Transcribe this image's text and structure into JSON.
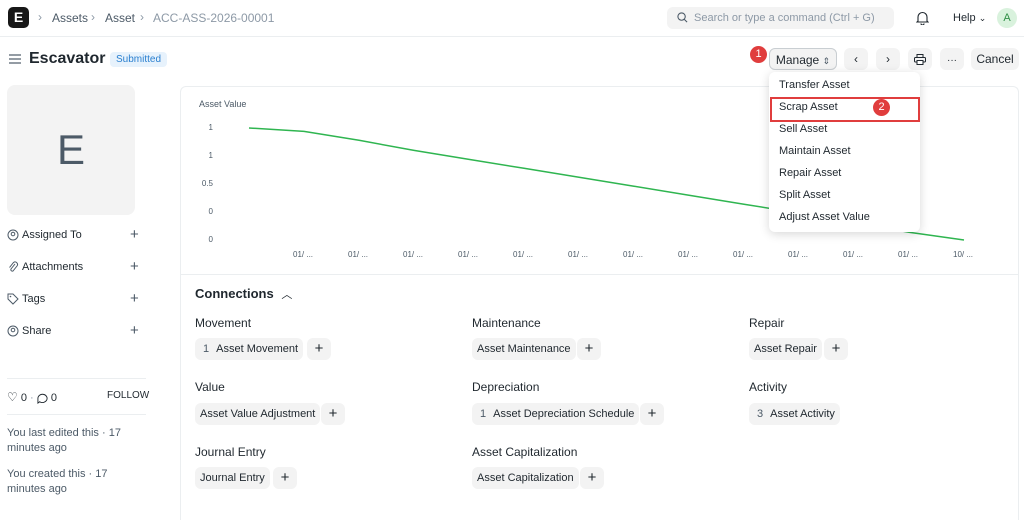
{
  "navbar": {
    "logo": "E",
    "breadcrumbs": [
      "Assets",
      "Asset",
      "ACC-ASS-2026-00001"
    ],
    "search_placeholder": "Search or type a command (Ctrl + G)",
    "help_label": "Help",
    "avatar_initial": "A"
  },
  "header": {
    "title": "Escavator",
    "status": "Submitted",
    "manage_label": "Manage",
    "cancel_label": "Cancel",
    "more_label": "···"
  },
  "steps": [
    "1",
    "2"
  ],
  "sidebar": {
    "image_letter": "E",
    "items": [
      {
        "label": "Assigned To",
        "icon": "assign-icon"
      },
      {
        "label": "Attachments",
        "icon": "paperclip-icon"
      },
      {
        "label": "Tags",
        "icon": "tag-icon"
      },
      {
        "label": "Share",
        "icon": "share-icon"
      }
    ],
    "likes": "0",
    "comments": "0",
    "follow_label": "FOLLOW",
    "last_edited": "You last edited this · 17 minutes ago",
    "created": "You created this · 17 minutes ago"
  },
  "chart_data": {
    "type": "line",
    "title": "Asset Value",
    "y_ticks": [
      "1",
      "1",
      "0.5",
      "0",
      "0"
    ],
    "x_ticks": [
      "01/ ...",
      "01/ ...",
      "01/ ...",
      "01/ ...",
      "01/ ...",
      "01/ ...",
      "01/ ...",
      "01/ ...",
      "01/ ...",
      "01/ ...",
      "01/ ...",
      "01/ ...",
      "10/ ..."
    ],
    "color": "#2fb550",
    "ylim": [
      0,
      1
    ],
    "series": [
      {
        "values": [
          1.0,
          0.97,
          0.89,
          0.8,
          0.72,
          0.64,
          0.56,
          0.48,
          0.4,
          0.32,
          0.24,
          0.15,
          0.07,
          0.0
        ]
      }
    ]
  },
  "connections": {
    "title": "Connections",
    "groups": [
      {
        "title": "Movement",
        "items": [
          {
            "count": "1",
            "label": "Asset Movement"
          }
        ]
      },
      {
        "title": "Maintenance",
        "items": [
          {
            "count": "",
            "label": "Asset Maintenance"
          }
        ]
      },
      {
        "title": "Repair",
        "items": [
          {
            "count": "",
            "label": "Asset Repair"
          }
        ]
      },
      {
        "title": "Value",
        "items": [
          {
            "count": "",
            "label": "Asset Value Adjustment"
          }
        ]
      },
      {
        "title": "Depreciation",
        "items": [
          {
            "count": "1",
            "label": "Asset Depreciation Schedule"
          }
        ]
      },
      {
        "title": "Activity",
        "items": [
          {
            "count": "3",
            "label": "Asset Activity"
          }
        ]
      },
      {
        "title": "Journal Entry",
        "items": [
          {
            "count": "",
            "label": "Journal Entry"
          }
        ]
      },
      {
        "title": "Asset Capitalization",
        "items": [
          {
            "count": "",
            "label": "Asset Capitalization"
          }
        ]
      }
    ]
  },
  "manage_menu": {
    "items": [
      "Transfer Asset",
      "Scrap Asset",
      "Sell Asset",
      "Maintain Asset",
      "Repair Asset",
      "Split Asset",
      "Adjust Asset Value"
    ]
  },
  "colors": {
    "accent": "#e03d3d",
    "line": "#2fb550",
    "badge_bg": "#e7f2fc",
    "badge_text": "#2b80d0"
  }
}
